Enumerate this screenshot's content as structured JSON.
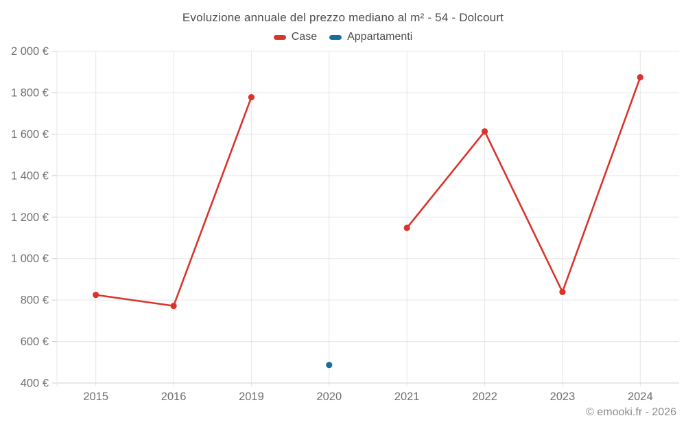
{
  "title": "Evoluzione annuale del prezzo mediano al m² - 54 - Dolcourt",
  "legend": [
    {
      "label": "Case",
      "color": "#d9342b"
    },
    {
      "label": "Appartamenti",
      "color": "#1a6d9c"
    }
  ],
  "footer": "© emooki.fr - 2026",
  "chart_data": {
    "type": "line",
    "title": "Evoluzione annuale del prezzo mediano al m² - 54 - Dolcourt",
    "categories": [
      "2015",
      "2016",
      "2019",
      "2020",
      "2021",
      "2022",
      "2023",
      "2024"
    ],
    "series": [
      {
        "name": "Case",
        "color": "#d9342b",
        "values": [
          825,
          772,
          1778,
          null,
          1148,
          1613,
          839,
          1874
        ]
      },
      {
        "name": "Appartamenti",
        "color": "#1a6d9c",
        "values": [
          null,
          null,
          null,
          487,
          null,
          null,
          null,
          null
        ]
      }
    ],
    "ylim": [
      400,
      2000
    ],
    "ytick_step": 200,
    "ytick_labels": [
      "400 €",
      "600 €",
      "800 €",
      "1 000 €",
      "1 200 €",
      "1 400 €",
      "1 600 €",
      "1 800 €",
      "2 000 €"
    ],
    "xlabel": "",
    "ylabel": "",
    "grid": true,
    "legend_position": "top",
    "colors": {
      "gridline": "#e6e6e6",
      "axis_line": "#d0d0d0",
      "tick": "#d0d0d0",
      "axis_text": "#6e6e6e"
    }
  }
}
